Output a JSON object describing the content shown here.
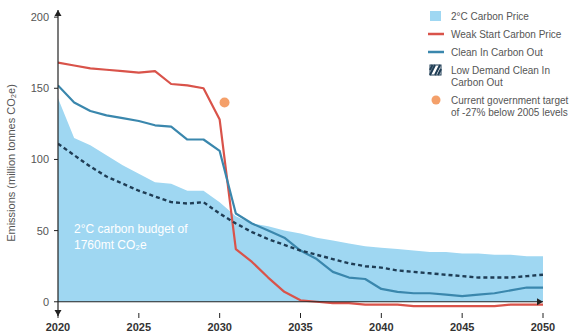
{
  "chart_data": {
    "type": "line",
    "ylabel": "Emissions (million tonnes CO₂e)",
    "annotation": "2°C carbon budget of 1760mt CO₂e",
    "x": [
      2020,
      2021,
      2022,
      2023,
      2024,
      2025,
      2026,
      2027,
      2028,
      2029,
      2030,
      2031,
      2032,
      2033,
      2034,
      2035,
      2036,
      2037,
      2038,
      2039,
      2040,
      2041,
      2042,
      2043,
      2044,
      2045,
      2046,
      2047,
      2048,
      2049,
      2050
    ],
    "xlim": [
      2020,
      2050
    ],
    "xticks": [
      2020,
      2025,
      2030,
      2035,
      2040,
      2045,
      2050
    ],
    "ylim": [
      -10,
      205
    ],
    "yticks": [
      0,
      50,
      100,
      150,
      200
    ],
    "legend": "top-right",
    "series": [
      {
        "name": "2°C Carbon Price",
        "type": "area",
        "color": "#9fd7f2",
        "values": [
          143,
          115,
          110,
          103,
          96,
          90,
          84,
          83,
          78,
          78,
          70,
          60,
          55,
          53,
          50,
          48,
          45,
          43,
          41,
          39,
          38,
          37,
          36,
          35,
          35,
          34,
          34,
          33,
          33,
          32,
          32
        ]
      },
      {
        "name": "Weak Start Carbon Price",
        "type": "line",
        "color": "#d9534a",
        "values": [
          168,
          166,
          164,
          163,
          162,
          161,
          162,
          153,
          152,
          150,
          128,
          37,
          28,
          17,
          7,
          1,
          0,
          -1,
          -1,
          -2,
          -2,
          -2,
          -3,
          -3,
          -3,
          -3,
          -3,
          -3,
          -2,
          -2,
          -2
        ]
      },
      {
        "name": "Clean In Carbon Out",
        "type": "line",
        "color": "#3a87ad",
        "values": [
          152,
          140,
          134,
          131,
          129,
          127,
          124,
          123,
          114,
          114,
          106,
          62,
          55,
          50,
          45,
          36,
          30,
          21,
          17,
          16,
          9,
          7,
          6,
          6,
          5,
          4,
          5,
          6,
          8,
          10,
          10
        ]
      },
      {
        "name": "Low Demand Clean In Carbon Out",
        "type": "line",
        "color": "#1f3d55",
        "line_style": "dashed",
        "values": [
          111,
          103,
          95,
          88,
          83,
          78,
          74,
          70,
          69,
          70,
          62,
          55,
          49,
          44,
          40,
          36,
          33,
          30,
          27,
          25,
          24,
          22,
          21,
          20,
          19,
          18,
          17,
          17,
          17,
          18,
          19
        ]
      },
      {
        "name": "Current government target of -27% below 2005 levels",
        "type": "scatter",
        "color": "#f4a06a",
        "marker": "circle",
        "x": [
          2030.3
        ],
        "values": [
          140
        ]
      }
    ]
  }
}
